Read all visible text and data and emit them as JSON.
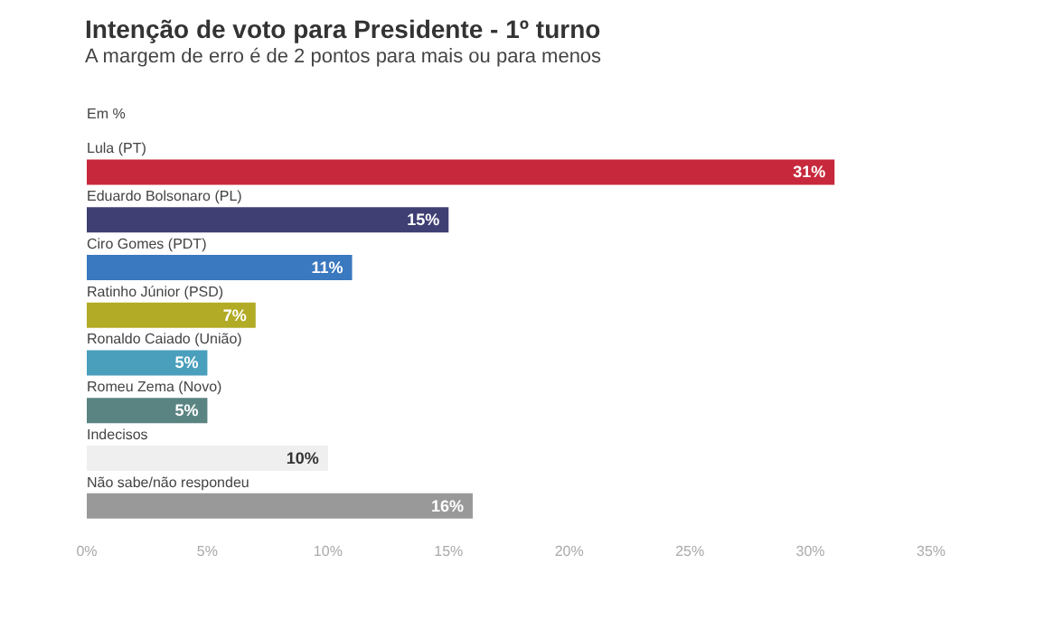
{
  "chart_data": {
    "type": "bar",
    "orientation": "horizontal",
    "title": "Intenção de voto para Presidente - 1º turno",
    "subtitle": "A margem de erro é de 2 pontos para mais ou para menos",
    "annotations": [
      "Em %"
    ],
    "categories": [
      "Lula (PT)",
      "Eduardo Bolsonaro (PL)",
      "Ciro Gomes (PDT)",
      "Ratinho Júnior (PSD)",
      "Ronaldo Caiado (União)",
      "Romeu Zema (Novo)",
      "Indecisos",
      "Não sabe/não respondeu"
    ],
    "values": [
      31,
      15,
      11,
      7,
      5,
      5,
      10,
      16
    ],
    "colors": [
      "#c8283c",
      "#3f3f74",
      "#3a78bf",
      "#b2ab25",
      "#4a9fbd",
      "#5a8482",
      "#efefef",
      "#999999"
    ],
    "value_labels": [
      "31%",
      "15%",
      "11%",
      "7%",
      "5%",
      "5%",
      "10%",
      "16%"
    ],
    "xlim": [
      0,
      35
    ],
    "xticks": [
      {
        "value": 0,
        "label": "0%"
      },
      {
        "value": 5,
        "label": "5%"
      },
      {
        "value": 10,
        "label": "10%"
      },
      {
        "value": 15,
        "label": "15%"
      },
      {
        "value": 20,
        "label": "20%"
      },
      {
        "value": 25,
        "label": "25%"
      },
      {
        "value": 30,
        "label": "30%"
      },
      {
        "value": 35,
        "label": "35%"
      }
    ],
    "grid": false
  }
}
